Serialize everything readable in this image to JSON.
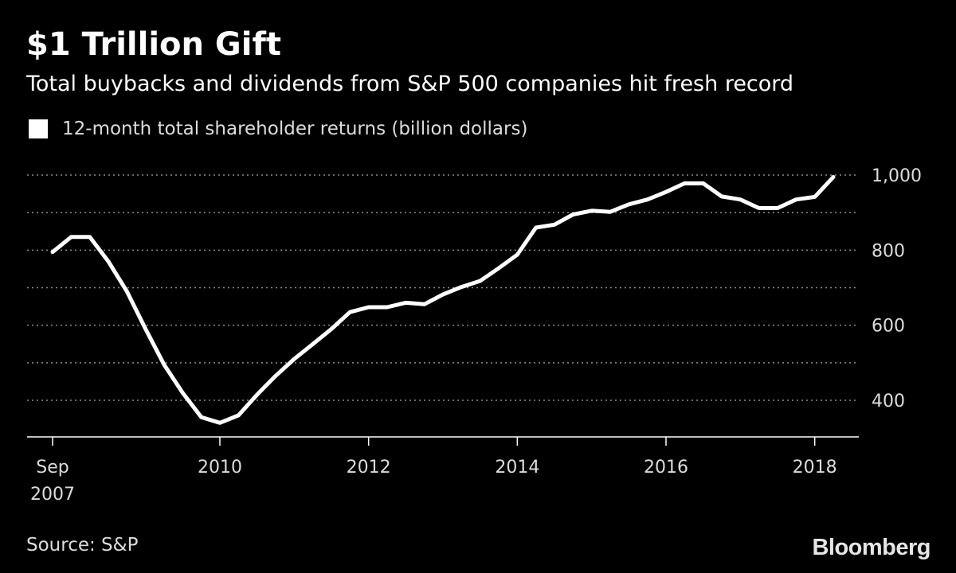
{
  "title": "$1 Trillion Gift",
  "subtitle": "Total buybacks and dividends from S&P 500 companies hit fresh record",
  "legend_label": "12-month total shareholder returns (billion dollars)",
  "source": "Source: S&P",
  "brand": "Bloomberg",
  "colors": {
    "background": "#000000",
    "line": "#ffffff",
    "grid": "#8c8c8c",
    "text": "#dcdcdc"
  },
  "chart_data": {
    "type": "line",
    "title": "$1 Trillion Gift",
    "subtitle": "Total buybacks and dividends from S&P 500 companies hit fresh record",
    "xlabel": "",
    "ylabel": "",
    "ylim": [
      300,
      1000
    ],
    "y_ticks": [
      {
        "value": 1000,
        "label": "1,000"
      },
      {
        "value": 800,
        "label": "800"
      },
      {
        "value": 600,
        "label": "600"
      },
      {
        "value": 400,
        "label": "400"
      }
    ],
    "y_grid_values": [
      1000,
      900,
      800,
      700,
      600,
      500,
      400
    ],
    "grid": true,
    "y_axis_position": "right",
    "x_ticks": [
      {
        "value": 2007.75,
        "label": "Sep",
        "label2": "2007"
      },
      {
        "value": 2010.0,
        "label": "2010",
        "label2": ""
      },
      {
        "value": 2012.0,
        "label": "2012",
        "label2": ""
      },
      {
        "value": 2014.0,
        "label": "2014",
        "label2": ""
      },
      {
        "value": 2016.0,
        "label": "2016",
        "label2": ""
      },
      {
        "value": 2018.0,
        "label": "2018",
        "label2": ""
      }
    ],
    "xlim": [
      2007.4,
      2018.6
    ],
    "legend_position": "top-left",
    "series": [
      {
        "name": "12-month total shareholder returns (billion dollars)",
        "x": [
          2007.75,
          2008.0,
          2008.25,
          2008.5,
          2008.75,
          2009.0,
          2009.25,
          2009.5,
          2009.75,
          2010.0,
          2010.25,
          2010.5,
          2010.75,
          2011.0,
          2011.25,
          2011.5,
          2011.75,
          2012.0,
          2012.25,
          2012.5,
          2012.75,
          2013.0,
          2013.25,
          2013.5,
          2013.75,
          2014.0,
          2014.25,
          2014.5,
          2014.75,
          2015.0,
          2015.25,
          2015.5,
          2015.75,
          2016.0,
          2016.25,
          2016.5,
          2016.75,
          2017.0,
          2017.25,
          2017.5,
          2017.75,
          2018.0,
          2018.25
        ],
        "values": [
          795,
          835,
          835,
          770,
          690,
          590,
          495,
          420,
          355,
          340,
          360,
          415,
          465,
          510,
          550,
          590,
          635,
          648,
          648,
          660,
          656,
          682,
          702,
          718,
          752,
          788,
          860,
          868,
          895,
          905,
          902,
          922,
          935,
          955,
          978,
          978,
          943,
          935,
          912,
          912,
          935,
          942,
          995
        ]
      }
    ]
  }
}
